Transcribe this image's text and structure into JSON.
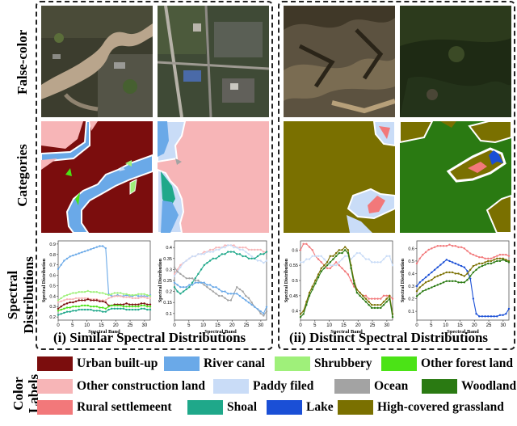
{
  "row_labels": {
    "false_color": "False-color",
    "categories": "Categories",
    "spectral_line1": "Spectral",
    "spectral_line2": "Distributions",
    "color_line1": "Color",
    "color_line2": "Labels"
  },
  "captions": {
    "left": "(i) Similar Spectral Distributions",
    "right": "(ii) Distinct Spectral Distributions"
  },
  "legend": [
    {
      "label": "Urban built-up",
      "color": "#7b0d0d"
    },
    {
      "label": "River canal",
      "color": "#6aa9e8"
    },
    {
      "label": "Shrubbery",
      "color": "#9ff07a"
    },
    {
      "label": "Other forest land",
      "color": "#4be316"
    },
    {
      "label": "Other construction land",
      "color": "#f7b5b7"
    },
    {
      "label": "Paddy filed",
      "color": "#c9dcf7"
    },
    {
      "label": "Ocean",
      "color": "#a3a3a3"
    },
    {
      "label": "Woodland",
      "color": "#2a7a12"
    },
    {
      "label": "Rural settlemeent",
      "color": "#f2787a"
    },
    {
      "label": "Shoal",
      "color": "#1fa88a"
    },
    {
      "label": "Lake",
      "color": "#1a4fd6"
    },
    {
      "label": "High-covered grassland",
      "color": "#7a7000"
    }
  ],
  "chart_data": [
    {
      "type": "line",
      "xlabel": "Spectral Band",
      "ylabel": "Spectral Distribution",
      "xticks": [
        0,
        5,
        10,
        15,
        20,
        25,
        30
      ],
      "yticks": [
        0.2,
        0.3,
        0.4,
        0.5,
        0.6,
        0.7,
        0.8,
        0.9
      ],
      "xlim": [
        0,
        32
      ],
      "ylim": [
        0.17,
        0.93
      ],
      "series": [
        {
          "color": "#6aa9e8",
          "values": [
            0.66,
            0.7,
            0.74,
            0.76,
            0.78,
            0.79,
            0.8,
            0.81,
            0.82,
            0.83,
            0.84,
            0.85,
            0.86,
            0.87,
            0.88,
            0.88,
            0.86,
            0.42,
            0.4,
            0.4,
            0.41,
            0.4,
            0.4,
            0.41,
            0.4,
            0.4,
            0.41,
            0.4,
            0.4,
            0.4,
            0.4,
            0.41
          ]
        },
        {
          "color": "#9ff07a",
          "values": [
            0.36,
            0.38,
            0.4,
            0.41,
            0.42,
            0.43,
            0.43,
            0.44,
            0.44,
            0.44,
            0.45,
            0.44,
            0.44,
            0.44,
            0.43,
            0.43,
            0.42,
            0.41,
            0.42,
            0.43,
            0.43,
            0.43,
            0.42,
            0.42,
            0.41,
            0.41,
            0.41,
            0.42,
            0.42,
            0.42,
            0.41,
            0.4
          ]
        },
        {
          "color": "#f7b5b7",
          "values": [
            0.34,
            0.35,
            0.36,
            0.37,
            0.37,
            0.37,
            0.38,
            0.38,
            0.38,
            0.38,
            0.38,
            0.37,
            0.37,
            0.37,
            0.36,
            0.36,
            0.36,
            0.38,
            0.39,
            0.4,
            0.4,
            0.4,
            0.39,
            0.39,
            0.39,
            0.38,
            0.38,
            0.38,
            0.39,
            0.39,
            0.38,
            0.38
          ]
        },
        {
          "color": "#7b0d0d",
          "values": [
            0.28,
            0.3,
            0.32,
            0.33,
            0.34,
            0.34,
            0.35,
            0.36,
            0.36,
            0.36,
            0.37,
            0.36,
            0.36,
            0.36,
            0.35,
            0.35,
            0.34,
            0.31,
            0.31,
            0.32,
            0.32,
            0.32,
            0.32,
            0.33,
            0.32,
            0.32,
            0.32,
            0.32,
            0.33,
            0.33,
            0.32,
            0.32
          ]
        },
        {
          "color": "#4be316",
          "values": [
            0.26,
            0.27,
            0.28,
            0.29,
            0.29,
            0.3,
            0.3,
            0.3,
            0.31,
            0.31,
            0.31,
            0.3,
            0.3,
            0.3,
            0.29,
            0.29,
            0.28,
            0.3,
            0.31,
            0.31,
            0.31,
            0.31,
            0.3,
            0.3,
            0.3,
            0.3,
            0.3,
            0.3,
            0.31,
            0.31,
            0.3,
            0.3
          ]
        },
        {
          "color": "#1fa88a",
          "values": [
            0.22,
            0.23,
            0.24,
            0.25,
            0.25,
            0.26,
            0.26,
            0.27,
            0.27,
            0.27,
            0.27,
            0.27,
            0.26,
            0.26,
            0.26,
            0.25,
            0.25,
            0.27,
            0.28,
            0.28,
            0.28,
            0.28,
            0.28,
            0.27,
            0.27,
            0.27,
            0.27,
            0.27,
            0.28,
            0.28,
            0.27,
            0.27
          ]
        }
      ]
    },
    {
      "type": "line",
      "xlabel": "Spectral Band",
      "ylabel": "Spectral Distribution",
      "xticks": [
        0,
        5,
        10,
        15,
        20,
        25,
        30
      ],
      "yticks": [
        0.1,
        0.15,
        0.2,
        0.25,
        0.3,
        0.35,
        0.4
      ],
      "xlim": [
        0,
        32
      ],
      "ylim": [
        0.07,
        0.43
      ],
      "series": [
        {
          "color": "#f7b5b7",
          "values": [
            0.28,
            0.3,
            0.32,
            0.33,
            0.34,
            0.35,
            0.36,
            0.36,
            0.37,
            0.37,
            0.38,
            0.38,
            0.39,
            0.39,
            0.4,
            0.4,
            0.4,
            0.41,
            0.41,
            0.41,
            0.41,
            0.4,
            0.4,
            0.4,
            0.4,
            0.39,
            0.39,
            0.39,
            0.39,
            0.39,
            0.38,
            0.38
          ]
        },
        {
          "color": "#c9dcf7",
          "values": [
            0.27,
            0.29,
            0.31,
            0.33,
            0.34,
            0.35,
            0.36,
            0.36,
            0.37,
            0.37,
            0.37,
            0.38,
            0.38,
            0.38,
            0.39,
            0.39,
            0.4,
            0.4,
            0.41,
            0.41,
            0.4,
            0.4,
            0.39,
            0.39,
            0.38,
            0.37,
            0.36,
            0.35,
            0.34,
            0.34,
            0.33,
            0.34
          ]
        },
        {
          "color": "#1fa88a",
          "values": [
            0.22,
            0.2,
            0.19,
            0.2,
            0.21,
            0.22,
            0.24,
            0.26,
            0.28,
            0.3,
            0.32,
            0.33,
            0.34,
            0.35,
            0.35,
            0.36,
            0.37,
            0.37,
            0.38,
            0.38,
            0.38,
            0.37,
            0.37,
            0.36,
            0.36,
            0.35,
            0.35,
            0.35,
            0.36,
            0.37,
            0.37,
            0.38
          ]
        },
        {
          "color": "#a3a3a3",
          "values": [
            0.31,
            0.29,
            0.28,
            0.27,
            0.26,
            0.26,
            0.26,
            0.25,
            0.25,
            0.24,
            0.23,
            0.22,
            0.21,
            0.2,
            0.19,
            0.18,
            0.18,
            0.17,
            0.16,
            0.16,
            0.19,
            0.22,
            0.21,
            0.2,
            0.18,
            0.17,
            0.15,
            0.13,
            0.12,
            0.1,
            0.09,
            0.11
          ]
        },
        {
          "color": "#6aa9e8",
          "values": [
            0.24,
            0.23,
            0.22,
            0.22,
            0.22,
            0.23,
            0.23,
            0.24,
            0.24,
            0.24,
            0.24,
            0.23,
            0.23,
            0.22,
            0.22,
            0.21,
            0.2,
            0.2,
            0.19,
            0.19,
            0.19,
            0.19,
            0.18,
            0.17,
            0.16,
            0.15,
            0.14,
            0.13,
            0.12,
            0.11,
            0.1,
            0.13
          ]
        }
      ]
    },
    {
      "type": "line",
      "xlabel": "Spectral Band",
      "ylabel": "Spectral Distribution",
      "xticks": [
        0,
        5,
        10,
        15,
        20,
        25,
        30
      ],
      "yticks": [
        0.4,
        0.45,
        0.5,
        0.55,
        0.6
      ],
      "xlim": [
        0,
        32
      ],
      "ylim": [
        0.37,
        0.63
      ],
      "series": [
        {
          "color": "#f2787a",
          "values": [
            0.6,
            0.62,
            0.62,
            0.61,
            0.6,
            0.58,
            0.57,
            0.56,
            0.55,
            0.54,
            0.54,
            0.55,
            0.56,
            0.55,
            0.54,
            0.53,
            0.52,
            0.5,
            0.48,
            0.47,
            0.46,
            0.45,
            0.45,
            0.44,
            0.44,
            0.44,
            0.44,
            0.44,
            0.45,
            0.45,
            0.45,
            0.44
          ]
        },
        {
          "color": "#c9dcf7",
          "values": [
            0.56,
            0.56,
            0.57,
            0.57,
            0.58,
            0.58,
            0.58,
            0.58,
            0.57,
            0.56,
            0.55,
            0.55,
            0.55,
            0.56,
            0.57,
            0.58,
            0.58,
            0.57,
            0.58,
            0.59,
            0.59,
            0.58,
            0.57,
            0.57,
            0.56,
            0.56,
            0.56,
            0.56,
            0.57,
            0.58,
            0.58,
            0.55
          ]
        },
        {
          "color": "#7a7000",
          "values": [
            0.39,
            0.4,
            0.43,
            0.46,
            0.48,
            0.5,
            0.52,
            0.54,
            0.55,
            0.56,
            0.58,
            0.58,
            0.59,
            0.6,
            0.6,
            0.61,
            0.6,
            0.55,
            0.5,
            0.47,
            0.46,
            0.45,
            0.44,
            0.43,
            0.42,
            0.42,
            0.42,
            0.42,
            0.43,
            0.44,
            0.45,
            0.39
          ]
        },
        {
          "color": "#2a7a12",
          "values": [
            0.38,
            0.39,
            0.42,
            0.45,
            0.47,
            0.49,
            0.51,
            0.53,
            0.54,
            0.55,
            0.56,
            0.57,
            0.58,
            0.59,
            0.59,
            0.6,
            0.59,
            0.54,
            0.49,
            0.46,
            0.45,
            0.44,
            0.43,
            0.42,
            0.41,
            0.41,
            0.41,
            0.41,
            0.42,
            0.43,
            0.44,
            0.38
          ]
        }
      ]
    },
    {
      "type": "line",
      "xlabel": "Spectral Band",
      "ylabel": "Spectral Distribution",
      "xticks": [
        0,
        5,
        10,
        15,
        20,
        25,
        30
      ],
      "yticks": [
        0.1,
        0.2,
        0.3,
        0.4,
        0.5,
        0.6
      ],
      "xlim": [
        0,
        32
      ],
      "ylim": [
        0.03,
        0.66
      ],
      "series": [
        {
          "color": "#f2787a",
          "values": [
            0.48,
            0.52,
            0.55,
            0.57,
            0.59,
            0.6,
            0.61,
            0.62,
            0.62,
            0.62,
            0.62,
            0.63,
            0.62,
            0.62,
            0.61,
            0.61,
            0.6,
            0.58,
            0.56,
            0.55,
            0.54,
            0.53,
            0.53,
            0.52,
            0.52,
            0.52,
            0.53,
            0.54,
            0.55,
            0.55,
            0.55,
            0.54
          ]
        },
        {
          "color": "#1a4fd6",
          "values": [
            0.3,
            0.33,
            0.35,
            0.37,
            0.39,
            0.41,
            0.43,
            0.45,
            0.47,
            0.49,
            0.51,
            0.5,
            0.49,
            0.48,
            0.47,
            0.46,
            0.45,
            0.42,
            0.36,
            0.2,
            0.08,
            0.06,
            0.06,
            0.06,
            0.06,
            0.06,
            0.06,
            0.06,
            0.07,
            0.07,
            0.08,
            0.12
          ]
        },
        {
          "color": "#7a7000",
          "values": [
            0.26,
            0.29,
            0.31,
            0.33,
            0.34,
            0.35,
            0.37,
            0.38,
            0.39,
            0.4,
            0.41,
            0.41,
            0.41,
            0.4,
            0.4,
            0.39,
            0.38,
            0.4,
            0.43,
            0.46,
            0.47,
            0.48,
            0.48,
            0.49,
            0.5,
            0.5,
            0.51,
            0.52,
            0.52,
            0.52,
            0.51,
            0.5
          ]
        },
        {
          "color": "#2a7a12",
          "values": [
            0.22,
            0.24,
            0.26,
            0.27,
            0.28,
            0.29,
            0.3,
            0.31,
            0.32,
            0.33,
            0.34,
            0.34,
            0.34,
            0.34,
            0.33,
            0.33,
            0.33,
            0.35,
            0.38,
            0.41,
            0.43,
            0.45,
            0.46,
            0.47,
            0.48,
            0.48,
            0.49,
            0.5,
            0.5,
            0.51,
            0.5,
            0.49
          ]
        }
      ]
    }
  ]
}
